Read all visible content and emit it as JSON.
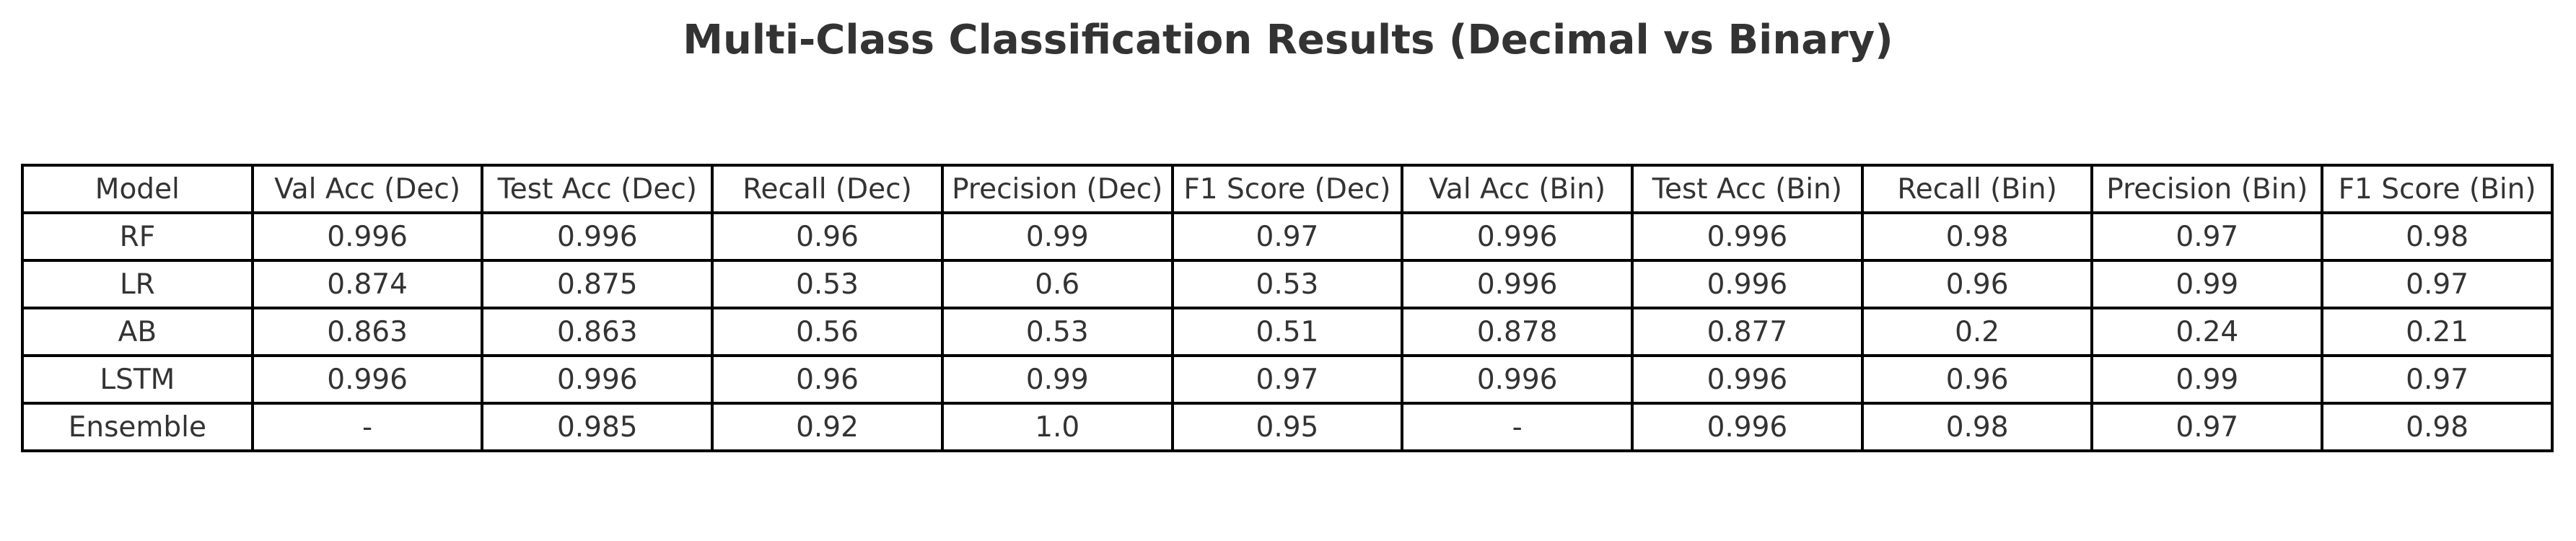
{
  "chart_data": {
    "type": "table",
    "title": "Multi-Class Classification Results (Decimal vs Binary)",
    "columns": [
      "Model",
      "Val Acc (Dec)",
      "Test Acc (Dec)",
      "Recall (Dec)",
      "Precision (Dec)",
      "F1 Score (Dec)",
      "Val Acc (Bin)",
      "Test Acc (Bin)",
      "Recall (Bin)",
      "Precision (Bin)",
      "F1 Score (Bin)"
    ],
    "rows": [
      [
        "RF",
        "0.996",
        "0.996",
        "0.96",
        "0.99",
        "0.97",
        "0.996",
        "0.996",
        "0.98",
        "0.97",
        "0.98"
      ],
      [
        "LR",
        "0.874",
        "0.875",
        "0.53",
        "0.6",
        "0.53",
        "0.996",
        "0.996",
        "0.96",
        "0.99",
        "0.97"
      ],
      [
        "AB",
        "0.863",
        "0.863",
        "0.56",
        "0.53",
        "0.51",
        "0.878",
        "0.877",
        "0.2",
        "0.24",
        "0.21"
      ],
      [
        "LSTM",
        "0.996",
        "0.996",
        "0.96",
        "0.99",
        "0.97",
        "0.996",
        "0.996",
        "0.96",
        "0.99",
        "0.97"
      ],
      [
        "Ensemble",
        "-",
        "0.985",
        "0.92",
        "1.0",
        "0.95",
        "-",
        "0.996",
        "0.98",
        "0.97",
        "0.98"
      ]
    ]
  }
}
